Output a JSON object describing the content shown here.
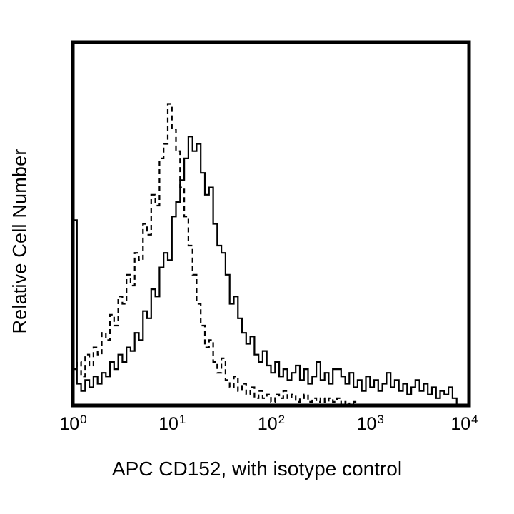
{
  "figure": {
    "background": "#ffffff",
    "foreground": "#000000"
  },
  "chart_data": {
    "type": "line",
    "subtype": "flow-cytometry-overlay-histogram",
    "title": "",
    "xlabel": "APC CD152, with isotype control",
    "ylabel": "Relative Cell Number",
    "x_scale": "log10",
    "x_decades": [
      0,
      4
    ],
    "x_ticks": [
      {
        "mantissa": "10",
        "exponent": "0"
      },
      {
        "mantissa": "10",
        "exponent": "1"
      },
      {
        "mantissa": "10",
        "exponent": "2"
      },
      {
        "mantissa": "10",
        "exponent": "3"
      },
      {
        "mantissa": "10",
        "exponent": "4"
      }
    ],
    "ylim": [
      0,
      100
    ],
    "grid": false,
    "legend": "none",
    "bins_per_decade": 24,
    "series": [
      {
        "name": "isotype control",
        "style": "dashed",
        "color": "#000000",
        "peak_x_approx": 9,
        "values": [
          10,
          12,
          8,
          14,
          11,
          16,
          14,
          20,
          18,
          25,
          22,
          30,
          28,
          36,
          33,
          42,
          40,
          50,
          47,
          58,
          55,
          68,
          72,
          83,
          76,
          70,
          60,
          52,
          44,
          36,
          28,
          22,
          16,
          18,
          12,
          9,
          13,
          7,
          5,
          8,
          4,
          6,
          3,
          5,
          2,
          4,
          2,
          3,
          1,
          3,
          2,
          4,
          2,
          3,
          1,
          2,
          3,
          1,
          2,
          1,
          2,
          1,
          2,
          1,
          2,
          0,
          1,
          0,
          1,
          0,
          0,
          0,
          0,
          0,
          0,
          0,
          0,
          0,
          0,
          0,
          0,
          0,
          0,
          0,
          0,
          0,
          0,
          0,
          0,
          0,
          0,
          0,
          0,
          0,
          0,
          0
        ]
      },
      {
        "name": "APC CD152",
        "style": "solid",
        "color": "#000000",
        "peak_x_approx": 14,
        "values": [
          51,
          6,
          4,
          7,
          5,
          8,
          6,
          9,
          8,
          12,
          10,
          14,
          12,
          16,
          15,
          20,
          18,
          26,
          24,
          32,
          30,
          38,
          42,
          40,
          52,
          56,
          62,
          68,
          74,
          70,
          72,
          64,
          58,
          60,
          50,
          44,
          42,
          36,
          28,
          30,
          24,
          20,
          17,
          19,
          14,
          12,
          15,
          11,
          9,
          12,
          8,
          10,
          7,
          9,
          11,
          7,
          10,
          6,
          8,
          12,
          7,
          9,
          6,
          10,
          10,
          8,
          6,
          9,
          5,
          7,
          4,
          8,
          5,
          7,
          4,
          6,
          9,
          5,
          7,
          4,
          6,
          3,
          5,
          7,
          4,
          6,
          3,
          5,
          2,
          4,
          3,
          5,
          2,
          0,
          0,
          0
        ]
      }
    ]
  }
}
